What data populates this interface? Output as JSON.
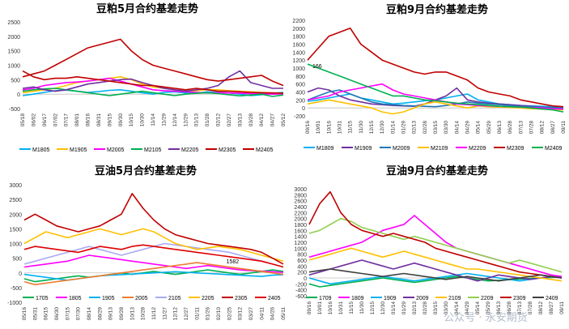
{
  "chart_data": [
    {
      "type": "line",
      "title": "豆粕5月合约基差走势",
      "ylim": [
        -500,
        2500
      ],
      "yticks": [
        -500,
        0,
        500,
        1000,
        1500,
        2000,
        2500
      ],
      "xticks": [
        "05/18",
        "06/02",
        "06/17",
        "07/02",
        "07/17",
        "08/01",
        "08/16",
        "08/31",
        "09/15",
        "09/30",
        "10/15",
        "10/30",
        "11/14",
        "11/29",
        "12/14",
        "12/29",
        "01/13",
        "01/28",
        "02/12",
        "02/27",
        "03/13",
        "03/28",
        "04/12",
        "04/27",
        "05/12"
      ],
      "legend": "bottom",
      "series": [
        {
          "name": "M1805",
          "color": "#00b0f0",
          "values": [
            -50,
            0,
            60,
            120,
            140,
            100,
            60,
            90,
            130,
            150,
            100,
            50,
            0,
            60,
            80,
            40,
            30,
            80,
            60,
            40,
            0,
            -50,
            -20,
            30,
            60
          ]
        },
        {
          "name": "M1905",
          "color": "#ffc000",
          "values": [
            50,
            100,
            150,
            200,
            300,
            400,
            450,
            500,
            550,
            600,
            500,
            350,
            250,
            200,
            150,
            100,
            120,
            160,
            150,
            120,
            100,
            80,
            60,
            40,
            30
          ]
        },
        {
          "name": "M2005",
          "color": "#ff00ff",
          "values": [
            150,
            200,
            300,
            350,
            400,
            420,
            450,
            500,
            550,
            450,
            350,
            250,
            150,
            120,
            100,
            80,
            60,
            40,
            50,
            40,
            30,
            20,
            10,
            0,
            10
          ]
        },
        {
          "name": "M2105",
          "color": "#00b050",
          "values": [
            100,
            150,
            180,
            200,
            150,
            100,
            50,
            0,
            -50,
            0,
            50,
            100,
            50,
            0,
            -50,
            0,
            30,
            50,
            20,
            -20,
            -60,
            -30,
            0,
            -80,
            -30
          ]
        },
        {
          "name": "M2205",
          "color": "#7030a0",
          "values": [
            200,
            250,
            150,
            100,
            150,
            250,
            350,
            400,
            450,
            500,
            520,
            400,
            300,
            200,
            150,
            100,
            150,
            200,
            300,
            600,
            800,
            400,
            300,
            200,
            200
          ]
        },
        {
          "name": "M2305",
          "color": "#c00000",
          "values": [
            600,
            700,
            800,
            1000,
            1200,
            1400,
            1600,
            1700,
            1800,
            1900,
            1500,
            1200,
            1000,
            900,
            800,
            700,
            600,
            500,
            450,
            500,
            550,
            600,
            650,
            450,
            300
          ]
        },
        {
          "name": "M2405",
          "color": "#c00000",
          "values": [
            800,
            600,
            500,
            550,
            550,
            600,
            550,
            500,
            450,
            400,
            350,
            300,
            300,
            250,
            200,
            150,
            200,
            150,
            100,
            100,
            80,
            60,
            50,
            40,
            30
          ]
        }
      ]
    },
    {
      "type": "line",
      "title": "豆粕9月合约基差走势",
      "ylim": [
        -200,
        2200
      ],
      "yticks": [
        -200,
        0,
        200,
        400,
        600,
        800,
        1000,
        1200,
        1400,
        1600,
        1800,
        2000,
        2200
      ],
      "xticks": [
        "09/16",
        "10/01",
        "10/16",
        "10/31",
        "11/15",
        "11/30",
        "12/15",
        "12/30",
        "01/14",
        "01/29",
        "02/13",
        "02/28",
        "03/15",
        "03/30",
        "04/14",
        "04/29",
        "05/14",
        "05/29",
        "06/13",
        "06/28",
        "07/13",
        "07/28",
        "08/12",
        "08/27",
        "09/11"
      ],
      "annotation": "166",
      "legend": "bottom",
      "series": [
        {
          "name": "M1809",
          "color": "#00b0f0",
          "values": [
            166,
            200,
            250,
            300,
            350,
            250,
            200,
            150,
            100,
            120,
            150,
            180,
            200,
            250,
            300,
            350,
            200,
            150,
            100,
            80,
            60,
            50,
            40,
            30,
            20
          ]
        },
        {
          "name": "M1909",
          "color": "#7030a0",
          "values": [
            400,
            500,
            450,
            300,
            200,
            150,
            100,
            80,
            60,
            50,
            40,
            100,
            200,
            300,
            500,
            200,
            150,
            120,
            100,
            80,
            60,
            40,
            20,
            0,
            -50
          ]
        },
        {
          "name": "M2009",
          "color": "#1f77b4",
          "values": [
            200,
            300,
            400,
            450,
            350,
            250,
            150,
            100,
            80,
            60,
            50,
            40,
            30,
            60,
            100,
            150,
            120,
            100,
            80,
            60,
            40,
            30,
            20,
            10,
            0
          ]
        },
        {
          "name": "M2109",
          "color": "#ffc000",
          "values": [
            100,
            150,
            200,
            150,
            100,
            50,
            0,
            -100,
            -150,
            -100,
            0,
            100,
            150,
            100,
            50,
            0,
            50,
            30,
            20,
            10,
            0,
            -20,
            -30,
            -40,
            -50
          ]
        },
        {
          "name": "M2209",
          "color": "#ff00ff",
          "values": [
            200,
            250,
            300,
            400,
            450,
            500,
            550,
            600,
            450,
            350,
            300,
            250,
            200,
            150,
            100,
            80,
            60,
            50,
            40,
            30,
            20,
            10,
            0,
            -20,
            -30
          ]
        },
        {
          "name": "M2309",
          "color": "#c00000",
          "values": [
            1200,
            1500,
            1800,
            1900,
            2000,
            1600,
            1400,
            1200,
            1100,
            1000,
            900,
            850,
            900,
            900,
            800,
            700,
            500,
            400,
            350,
            300,
            200,
            150,
            100,
            50,
            30
          ]
        },
        {
          "name": "M2409",
          "color": "#00b050",
          "values": [
            1100,
            1000,
            900,
            800,
            700,
            600,
            500,
            400,
            300,
            300,
            250,
            200,
            180,
            150,
            120,
            100,
            80,
            60,
            40,
            30,
            20,
            0,
            -30,
            -50,
            -100
          ]
        }
      ]
    },
    {
      "type": "line",
      "title": "豆油5月合约基差走势",
      "ylim": [
        -1000,
        3000
      ],
      "yticks": [
        -1000,
        -500,
        0,
        500,
        1000,
        1500,
        2000,
        2500,
        3000
      ],
      "xticks": [
        "05/16",
        "05/31",
        "06/15",
        "06/30",
        "07/15",
        "07/30",
        "08/14",
        "08/29",
        "09/13",
        "09/28",
        "10/13",
        "10/28",
        "11/12",
        "11/27",
        "12/12",
        "12/27",
        "01/11",
        "01/26",
        "02/10",
        "02/25",
        "03/12",
        "03/27",
        "04/11",
        "04/26",
        "05/11"
      ],
      "annotation": "1582",
      "legend": "bottom",
      "series": [
        {
          "name": "1705",
          "color": "#00b050",
          "values": [
            -200,
            -300,
            -250,
            -200,
            -150,
            -100,
            -150,
            -100,
            -50,
            0,
            -50,
            0,
            50,
            0,
            -50,
            0,
            50,
            100,
            50,
            0,
            -50,
            0,
            50,
            100,
            50
          ]
        },
        {
          "name": "1805",
          "color": "#ff00ff",
          "values": [
            200,
            250,
            300,
            350,
            400,
            500,
            600,
            550,
            500,
            450,
            400,
            350,
            300,
            250,
            200,
            150,
            200,
            250,
            200,
            150,
            100,
            80,
            60,
            40,
            20
          ]
        },
        {
          "name": "1905",
          "color": "#00b0f0",
          "values": [
            -50,
            -100,
            -150,
            -200,
            -250,
            -200,
            -150,
            -100,
            -80,
            -60,
            -40,
            -20,
            0,
            20,
            40,
            20,
            0,
            -20,
            -40,
            -60,
            -80,
            -100,
            -120,
            -80,
            -60
          ]
        },
        {
          "name": "2005",
          "color": "#ed7d31",
          "values": [
            -300,
            -400,
            -350,
            -300,
            -250,
            -200,
            -150,
            -100,
            -50,
            0,
            50,
            100,
            150,
            200,
            250,
            300,
            350,
            300,
            250,
            200,
            150,
            100,
            50,
            0,
            -50
          ]
        },
        {
          "name": "2105",
          "color": "#a9a9f5",
          "values": [
            300,
            400,
            500,
            600,
            700,
            800,
            900,
            800,
            700,
            600,
            700,
            800,
            900,
            1000,
            950,
            900,
            850,
            800,
            750,
            700,
            600,
            500,
            400,
            300,
            200
          ]
        },
        {
          "name": "2205",
          "color": "#ffc000",
          "values": [
            1000,
            1200,
            1400,
            1300,
            1200,
            1300,
            1400,
            1500,
            1400,
            1300,
            1400,
            1500,
            1400,
            1200,
            1000,
            900,
            800,
            850,
            900,
            850,
            800,
            700,
            600,
            500,
            400
          ]
        },
        {
          "name": "2305",
          "color": "#c00000",
          "values": [
            1800,
            2000,
            1800,
            1600,
            1500,
            1400,
            1500,
            1600,
            1800,
            2000,
            2700,
            2200,
            1800,
            1500,
            1300,
            1200,
            1100,
            1000,
            950,
            900,
            850,
            800,
            700,
            500,
            300
          ]
        },
        {
          "name": "2405",
          "color": "#e00000",
          "values": [
            800,
            900,
            850,
            800,
            750,
            700,
            800,
            900,
            850,
            800,
            900,
            950,
            900,
            850,
            800,
            750,
            700,
            650,
            600,
            550,
            500,
            450,
            400,
            300,
            200
          ]
        }
      ]
    },
    {
      "type": "line",
      "title": "豆油9月合约基差走势",
      "ylim": [
        -600,
        3000
      ],
      "yticks": [
        -600,
        -400,
        -200,
        0,
        200,
        400,
        600,
        800,
        1000,
        1200,
        1400,
        1600,
        1800,
        2000,
        2200,
        2400,
        2600,
        2800,
        3000
      ],
      "xticks": [
        "09/16",
        "10/01",
        "10/16",
        "10/31",
        "11/15",
        "11/30",
        "12/15",
        "12/30",
        "01/14",
        "01/29",
        "02/13",
        "02/28",
        "03/15",
        "03/30",
        "04/14",
        "04/29",
        "05/14",
        "05/29",
        "06/13",
        "06/28",
        "07/13",
        "07/28",
        "08/12",
        "08/27",
        "09/11"
      ],
      "legend": "bottom",
      "series": [
        {
          "name": "1709",
          "color": "#00b050",
          "values": [
            -200,
            -300,
            -250,
            -200,
            -150,
            -100,
            -50,
            0,
            -50,
            -100,
            -150,
            -100,
            -50,
            0,
            50,
            0,
            -50,
            -100,
            -80,
            -60,
            -40,
            -20,
            0,
            20,
            40
          ]
        },
        {
          "name": "1809",
          "color": "#ff00ff",
          "values": [
            700,
            800,
            900,
            1000,
            1100,
            1200,
            1400,
            1600,
            1700,
            1800,
            2100,
            1800,
            1500,
            1200,
            1000,
            900,
            800,
            700,
            600,
            500,
            400,
            300,
            200,
            100,
            50
          ]
        },
        {
          "name": "1909",
          "color": "#00b0f0",
          "values": [
            0,
            -100,
            -200,
            -150,
            -100,
            -50,
            0,
            50,
            0,
            -50,
            -100,
            -50,
            0,
            50,
            100,
            150,
            100,
            50,
            0,
            -50,
            -100,
            -50,
            0,
            50,
            0
          ]
        },
        {
          "name": "2009",
          "color": "#7030a0",
          "values": [
            100,
            200,
            300,
            400,
            500,
            600,
            500,
            400,
            300,
            400,
            500,
            400,
            300,
            200,
            100,
            0,
            -100,
            0,
            100,
            50,
            0,
            -50,
            0,
            50,
            0
          ]
        },
        {
          "name": "2109",
          "color": "#ffc000",
          "values": [
            600,
            700,
            800,
            900,
            1000,
            900,
            800,
            700,
            800,
            900,
            800,
            700,
            600,
            500,
            400,
            300,
            300,
            250,
            200,
            150,
            100,
            50,
            0,
            -50,
            -100
          ]
        },
        {
          "name": "2209",
          "color": "#92d050",
          "values": [
            1500,
            1600,
            1800,
            2000,
            1900,
            1700,
            1600,
            1500,
            1400,
            1300,
            1400,
            1300,
            1200,
            1100,
            1000,
            900,
            800,
            700,
            600,
            500,
            600,
            500,
            400,
            300,
            200
          ]
        },
        {
          "name": "2309",
          "color": "#c00000",
          "values": [
            1800,
            2500,
            2900,
            2200,
            1800,
            1600,
            1500,
            1400,
            1500,
            1400,
            1300,
            1200,
            1000,
            900,
            800,
            700,
            600,
            500,
            400,
            300,
            200,
            150,
            100,
            50,
            0
          ]
        },
        {
          "name": "2409",
          "color": "#404040",
          "values": [
            200,
            250,
            300,
            250,
            200,
            150,
            100,
            50,
            100,
            150,
            100,
            50,
            0,
            -50,
            0,
            50,
            0,
            -50,
            -100,
            -50,
            0,
            50,
            100,
            50,
            0
          ]
        }
      ]
    }
  ],
  "watermark": "公众号 · 永安期货"
}
